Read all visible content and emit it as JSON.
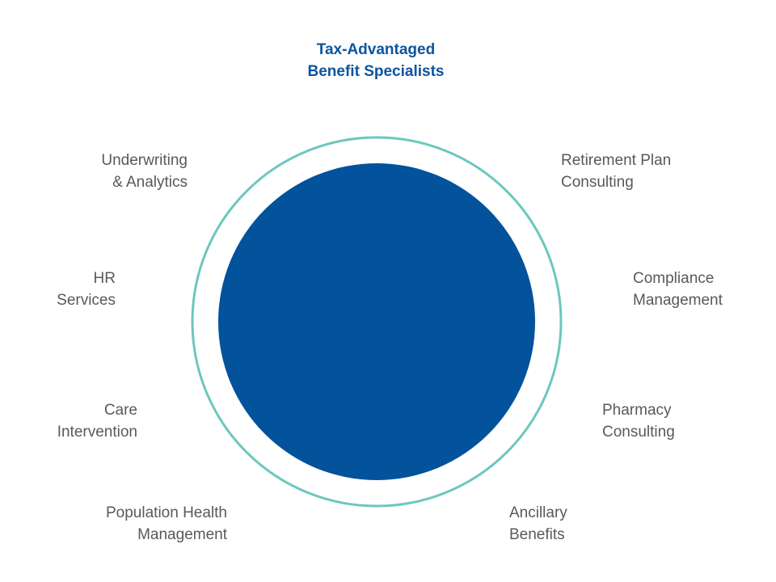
{
  "title": {
    "line1": "Tax-Advantaged",
    "line2": "Benefit Specialists"
  },
  "colors": {
    "title": "#0b55a0",
    "inner_circle": "#02529c",
    "outer_ring": "#6cc7be",
    "label_text": "#595959"
  },
  "labels": {
    "underwriting": {
      "line1": "Underwriting",
      "line2": "& Analytics"
    },
    "hr": {
      "line1": "HR",
      "line2": "Services"
    },
    "care": {
      "line1": "Care",
      "line2": "Intervention"
    },
    "population": {
      "line1": "Population Health",
      "line2": "Management"
    },
    "retirement": {
      "line1": "Retirement Plan",
      "line2": "Consulting"
    },
    "compliance": {
      "line1": "Compliance",
      "line2": "Management"
    },
    "pharmacy": {
      "line1": "Pharmacy",
      "line2": "Consulting"
    },
    "ancillary": {
      "line1": "Ancillary",
      "line2": "Benefits"
    }
  }
}
